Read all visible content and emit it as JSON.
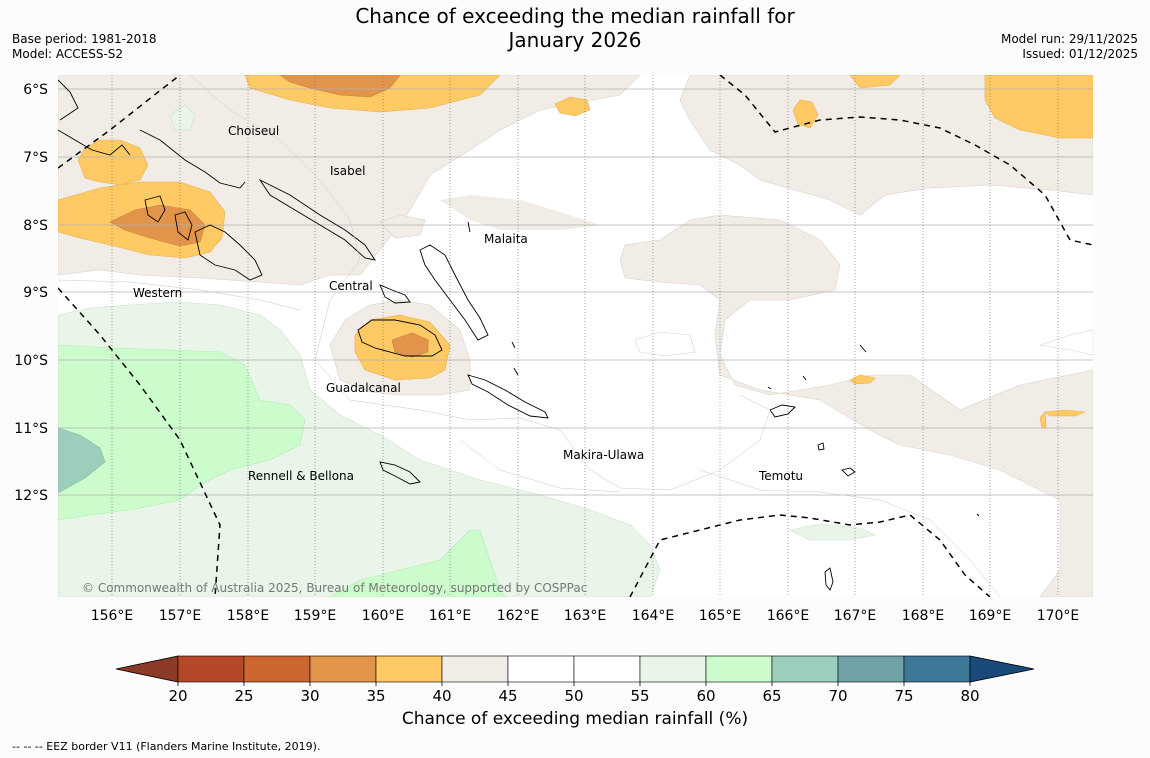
{
  "title_line1": "Chance of exceeding the median rainfall for",
  "title_line2": "January 2026",
  "base_period": "Base period: 1981-2018",
  "model": "Model: ACCESS-S2",
  "model_run": "Model run: 29/11/2025",
  "issued": "Issued: 01/12/2025",
  "lat_labels": [
    "6°S",
    "7°S",
    "8°S",
    "9°S",
    "10°S",
    "11°S",
    "12°S"
  ],
  "lon_labels": [
    "156°E",
    "157°E",
    "158°E",
    "159°E",
    "160°E",
    "161°E",
    "162°E",
    "163°E",
    "164°E",
    "165°E",
    "166°E",
    "167°E",
    "168°E",
    "169°E",
    "170°E"
  ],
  "regions": [
    "Choiseul",
    "Isabel",
    "Malaita",
    "Western",
    "Central",
    "Guadalcanal",
    "Makira-Ulawa",
    "Rennell & Bellona",
    "Temotu"
  ],
  "copyright": "© Commonwealth of Australia 2025, Bureau of Meteorology, supported by COSPPac",
  "colorbar": {
    "ticks": [
      "20",
      "25",
      "30",
      "35",
      "40",
      "45",
      "50",
      "55",
      "60",
      "65",
      "70",
      "75",
      "80"
    ],
    "colors": [
      "#b5482a",
      "#cd6630",
      "#e2944a",
      "#ffc964",
      "#f1ece6",
      "#ffffff",
      "#ffffff",
      "#e9f5e9",
      "#ccfccc",
      "#9ccfbb",
      "#6ea2a6",
      "#3f7797"
    ],
    "under_color": "#8a3a25",
    "over_color": "#194a7a",
    "label": "Chance of exceeding median rainfall (%)"
  },
  "footer": "--  --  -- EEZ border V11 (Flanders Marine Institute, 2019)."
}
